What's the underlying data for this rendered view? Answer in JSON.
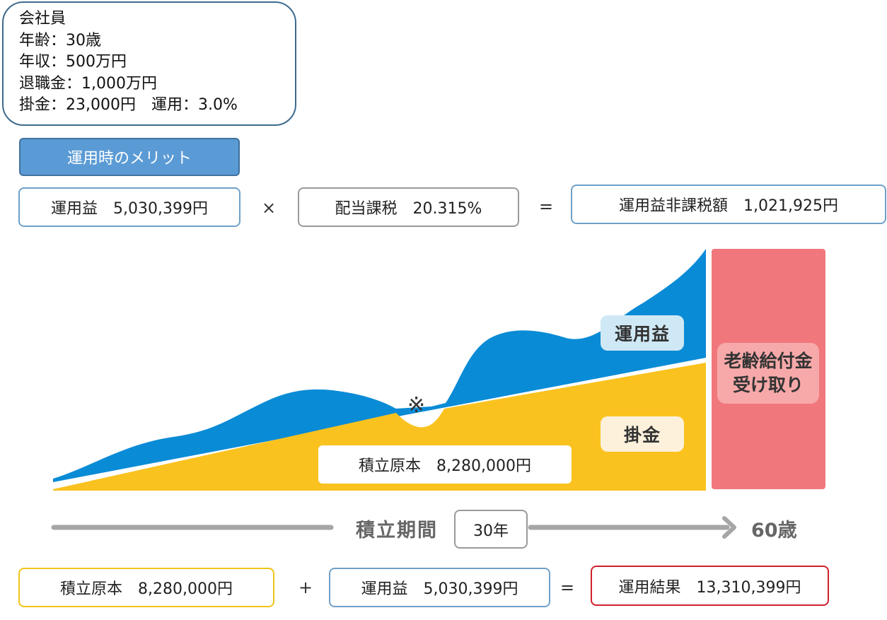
{
  "profile": {
    "line1": "会社員",
    "line2": "年齢：30歳",
    "line3": "年収：500万円",
    "line4": "退職金：1,000万円",
    "line5": "掛金：23,000円　運用：3.0%"
  },
  "merit_label": "運用時のメリット",
  "equation1": {
    "gain": "運用益　5,030,399円",
    "times": "×",
    "tax": "配当課税　20.315%",
    "equals": "=",
    "result": "運用益非課税額　1,021,925円"
  },
  "diagram": {
    "gain_label": "運用益",
    "contribution_label": "掛金",
    "principal_label": "積立原本　8,280,000円",
    "note_mark": "※",
    "receive_line1": "老齢給付金",
    "receive_line2": "受け取り",
    "period_label": "積立期間",
    "years": "30年",
    "end_age": "60歳",
    "colors": {
      "gain": "#0a8bd6",
      "contribution": "#f9c21f",
      "receive": "#f0787c",
      "arrow": "#a6a6a6"
    }
  },
  "equation2": {
    "principal": "積立原本　8,280,000円",
    "plus": "+",
    "gain": "運用益　5,030,399円",
    "equals": "=",
    "result": "運用結果　13,310,399円"
  }
}
